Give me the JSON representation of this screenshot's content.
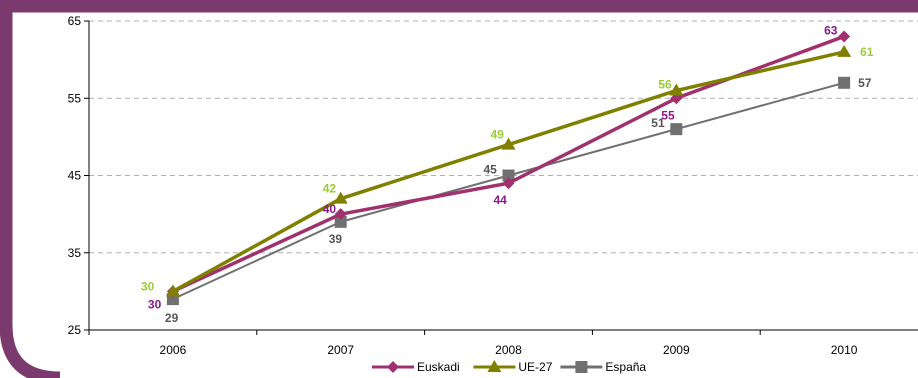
{
  "chart_data": {
    "type": "line",
    "categories": [
      "2006",
      "2007",
      "2008",
      "2009",
      "2010"
    ],
    "series": [
      {
        "name": "Euskadi",
        "values": [
          30,
          40,
          44,
          55,
          63
        ],
        "color": "#A0316E",
        "label_color": "#8B1A8B",
        "marker": "diamond"
      },
      {
        "name": "UE-27",
        "values": [
          30,
          42,
          49,
          56,
          61
        ],
        "color": "#808000",
        "label_color": "#9ACD32",
        "marker": "triangle"
      },
      {
        "name": "España",
        "values": [
          29,
          39,
          45,
          51,
          57
        ],
        "color": "#707070",
        "label_color": "#555555",
        "marker": "square"
      }
    ],
    "y_ticks": [
      "25",
      "35",
      "45",
      "55",
      "65"
    ],
    "ylim": [
      25,
      65
    ],
    "grid": "horizontal dashed",
    "legend_position": "bottom",
    "title": "",
    "xlabel": "",
    "ylabel": ""
  },
  "frame": {
    "border_color": "#7A3A6E"
  }
}
